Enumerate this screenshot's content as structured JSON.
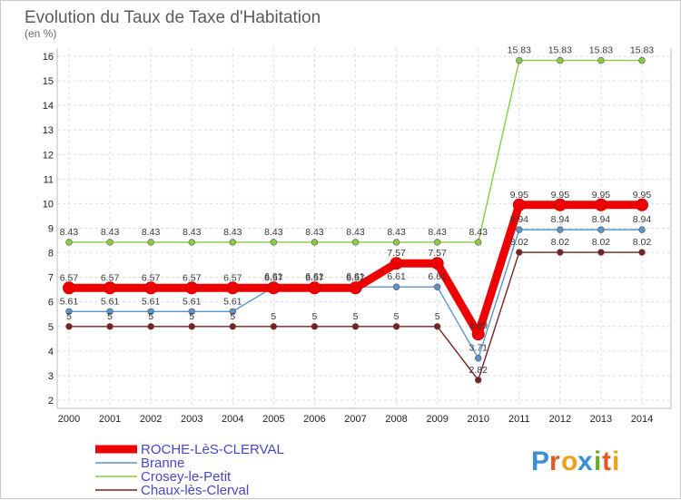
{
  "chart_data": {
    "type": "line",
    "title": "Evolution du Taux de Taxe d'Habitation",
    "subtitle": "(en %)",
    "categories": [
      "2000",
      "2001",
      "2002",
      "2003",
      "2004",
      "2005",
      "2006",
      "2007",
      "2008",
      "2009",
      "2010",
      "2011",
      "2012",
      "2013",
      "2014"
    ],
    "ylim": [
      2,
      16
    ],
    "yticks": [
      2,
      3,
      4,
      5,
      6,
      7,
      8,
      9,
      10,
      11,
      12,
      13,
      14,
      15,
      16
    ],
    "ytick_labels": [
      "2",
      "3",
      "4",
      "5",
      "6",
      "7",
      "8",
      "9",
      "10",
      "11",
      "12",
      "13",
      "14",
      "15",
      "16"
    ],
    "grid": true,
    "series": [
      {
        "name": "ROCHE-LèS-CLERVAL",
        "color": "#ee0000",
        "values": [
          6.57,
          6.57,
          6.57,
          6.57,
          6.57,
          6.57,
          6.57,
          6.57,
          7.57,
          7.57,
          4.69,
          9.95,
          9.95,
          9.95,
          9.95
        ],
        "labels": [
          "6.57",
          "6.57",
          "6.57",
          "6.57",
          "6.57",
          "6.57",
          "6.57",
          "6.57",
          "7.57",
          "7.57",
          "4.69",
          "9.95",
          "9.95",
          "9.95",
          "9.95"
        ]
      },
      {
        "name": "Branne",
        "color": "#5a93c8",
        "values": [
          5.61,
          5.61,
          5.61,
          5.61,
          5.61,
          6.61,
          6.61,
          6.61,
          6.61,
          6.61,
          3.71,
          8.94,
          8.94,
          8.94,
          8.94
        ],
        "labels": [
          "5.61",
          "5.61",
          "5.61",
          "5.61",
          "5.61",
          "6.61",
          "6.61",
          "6.61",
          "6.61",
          "6.61",
          "3.71",
          "8.94",
          "8.94",
          "8.94",
          "8.94"
        ]
      },
      {
        "name": "Crosey-le-Petit",
        "color": "#88cc44",
        "values": [
          8.43,
          8.43,
          8.43,
          8.43,
          8.43,
          8.43,
          8.43,
          8.43,
          8.43,
          8.43,
          8.43,
          15.83,
          15.83,
          15.83,
          15.83
        ],
        "labels": [
          "8.43",
          "8.43",
          "8.43",
          "8.43",
          "8.43",
          "8.43",
          "8.43",
          "8.43",
          "8.43",
          "8.43",
          "8.43",
          "15.83",
          "15.83",
          "15.83",
          "15.83"
        ]
      },
      {
        "name": "Chaux-lès-Clerval",
        "color": "#7a2020",
        "values": [
          5,
          5,
          5,
          5,
          5,
          5,
          5,
          5,
          5,
          5,
          2.82,
          8.02,
          8.02,
          8.02,
          8.02
        ],
        "labels": [
          "5",
          "5",
          "5",
          "5",
          "5",
          "5",
          "5",
          "5",
          "5",
          "5",
          "2.82",
          "8.02",
          "8.02",
          "8.02",
          "8.02"
        ]
      }
    ]
  },
  "logo": {
    "text": "Proxiti"
  }
}
